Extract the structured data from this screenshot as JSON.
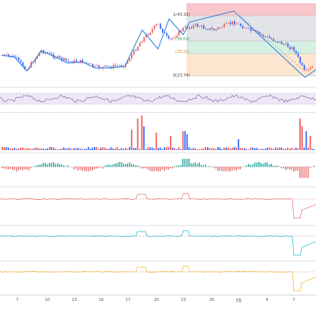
{
  "colors": {
    "up": "#ef5350",
    "down": "#2962ff",
    "fib_high": "#f7c7cb",
    "fib_mid_gray": "#e3e4e8",
    "fib_green": "#d6f0e2",
    "fib_orange": "#fde6cf",
    "fib_label_green": "#3aa86b",
    "fib_label_orange": "#e68a1c",
    "fib_label_gray": "#444444",
    "zigzag": "#2f7fd6",
    "rsi": "#7b5aa6",
    "macd_line": "#e57373",
    "osc_cyan": "#29b6d8",
    "osc_yellow": "#f2b233",
    "band_dash": "#d96a6a"
  },
  "fib_labels": {
    "top": "1(43.32)",
    "upper": "(38.54)",
    "middle": "(33.22)",
    "bottom": "0(23.74)"
  },
  "x_axis": {
    "ticks": [
      "7",
      "10",
      "13",
      "16",
      "17",
      "20",
      "23",
      "26",
      "3월",
      "4",
      "7"
    ]
  }
}
